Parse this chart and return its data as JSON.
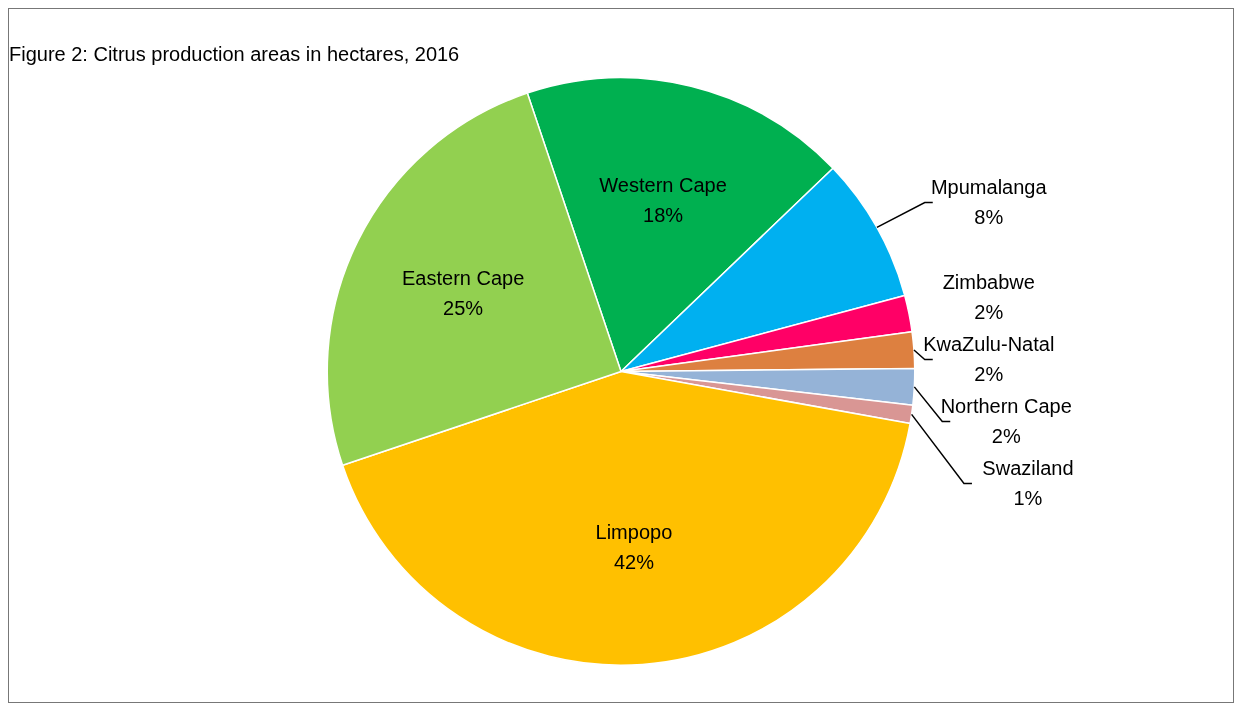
{
  "chart_data": {
    "type": "pie",
    "title": "Figure 2: Citrus production areas in hectares, 2016",
    "categories": [
      "Western Cape",
      "Mpumalanga",
      "Zimbabwe",
      "KwaZulu-Natal",
      "Northern Cape",
      "Swaziland",
      "Limpopo",
      "Eastern Cape"
    ],
    "values": [
      18,
      8,
      2,
      2,
      2,
      1,
      42,
      25
    ],
    "colors": [
      "#00b050",
      "#00b0f0",
      "#ff0066",
      "#dd8040",
      "#95b3d7",
      "#d99694",
      "#ffc000",
      "#92d050"
    ],
    "value_labels": [
      "18%",
      "8%",
      "2%",
      "2%",
      "2%",
      "1%",
      "42%",
      "25%"
    ]
  }
}
